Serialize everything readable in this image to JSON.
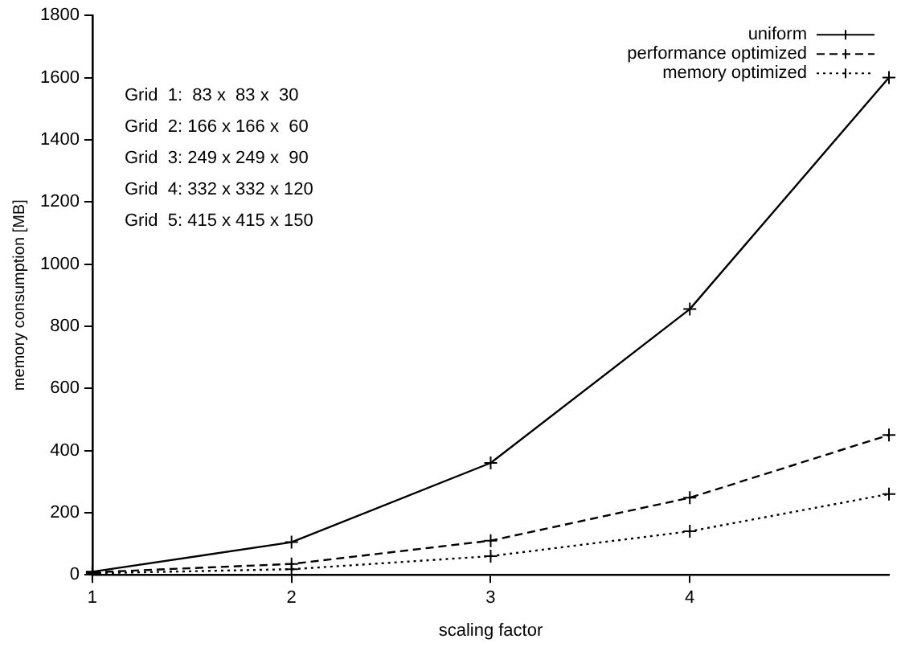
{
  "chart_data": {
    "type": "line",
    "xlabel": "scaling factor",
    "ylabel": "memory consumption [MB]",
    "x": [
      1,
      2,
      3,
      4,
      5
    ],
    "series": [
      {
        "name": "uniform",
        "color": "#000000",
        "values": [
          10,
          105,
          360,
          855,
          1600
        ],
        "marker": "cross",
        "line_style": "solid"
      },
      {
        "name": "performance optimized",
        "color": "#000000",
        "values": [
          8,
          35,
          110,
          248,
          450
        ],
        "marker": "cross",
        "line_style": "dashed"
      },
      {
        "name": "memory optimized",
        "color": "#000000",
        "values": [
          5,
          18,
          60,
          140,
          260
        ],
        "marker": "cross",
        "line_style": "dotted"
      }
    ],
    "xlim": [
      1,
      5
    ],
    "xticks": [
      1,
      2,
      3,
      4
    ],
    "ylim": [
      0,
      1800
    ],
    "yticks": [
      0,
      200,
      400,
      600,
      800,
      1000,
      1200,
      1400,
      1600,
      1800
    ],
    "grid": false,
    "legend": "top right",
    "annotations": [
      "Grid  1:  83 x  83 x  30",
      "Grid  2: 166 x 166 x  60",
      "Grid  3: 249 x 249 x  90",
      "Grid  4: 332 x 332 x 120",
      "Grid  5: 415 x 415 x 150"
    ]
  }
}
